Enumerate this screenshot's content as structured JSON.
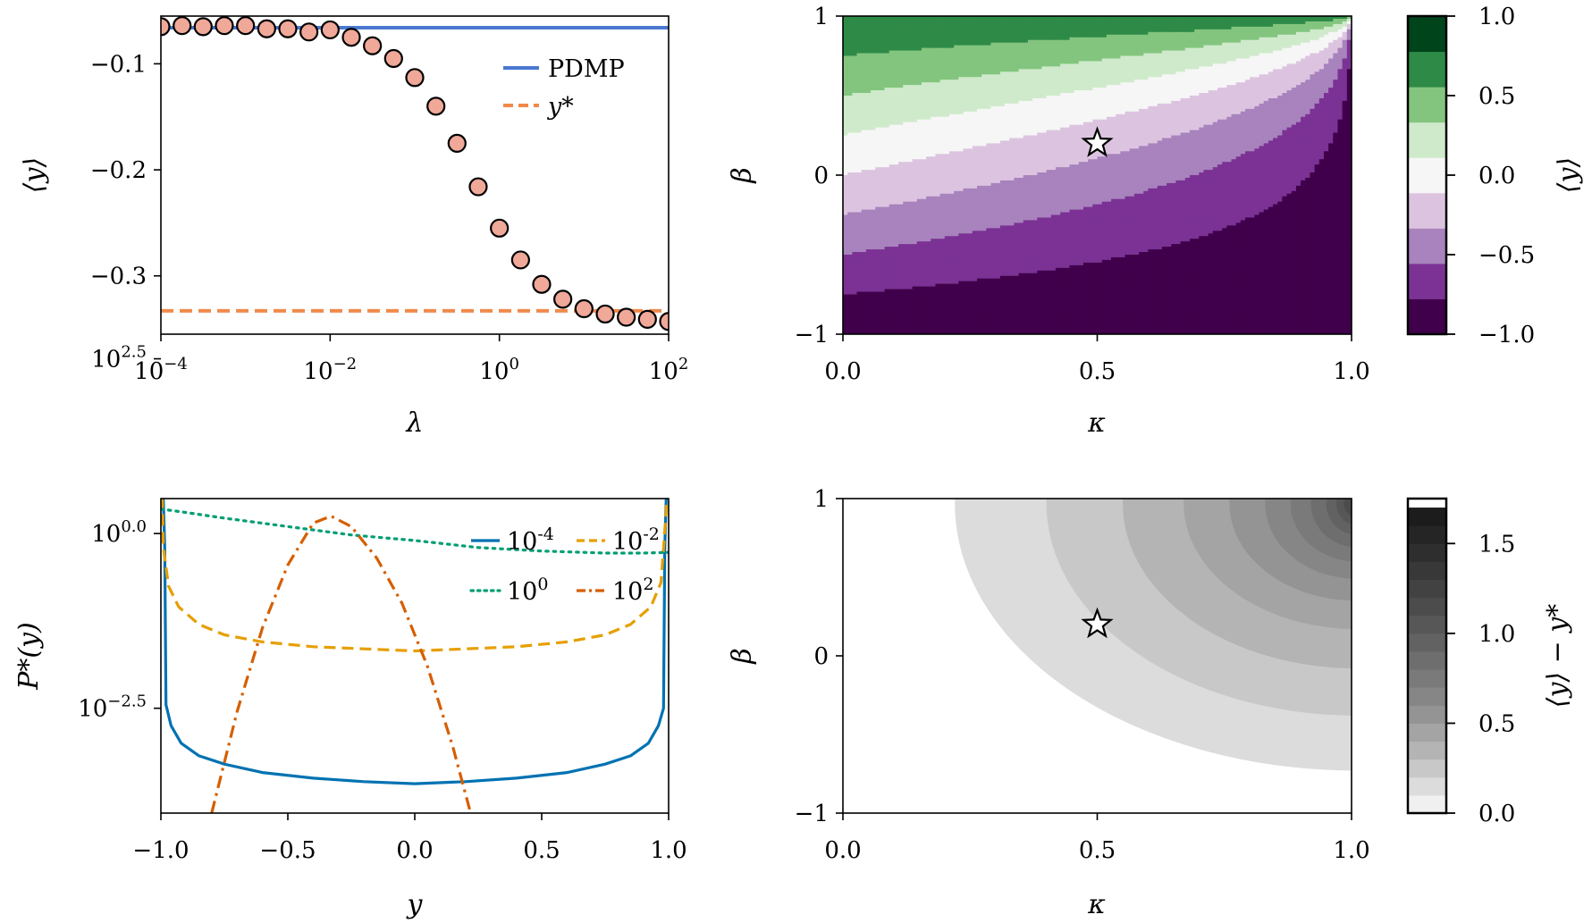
{
  "chart_data": [
    {
      "type": "scatter",
      "panel": "top-left",
      "xlabel": "λ",
      "ylabel": "⟨y⟩",
      "xscale": "log",
      "xlim": [
        0.0001,
        100
      ],
      "ylim": [
        -0.355,
        -0.055
      ],
      "xticks": [
        {
          "value": 0.0001,
          "base": "10",
          "exp": "−4"
        },
        {
          "value": 0.01,
          "base": "10",
          "exp": "−2"
        },
        {
          "value": 1,
          "base": "10",
          "exp": "0"
        },
        {
          "value": 100,
          "base": "10",
          "exp": "2"
        }
      ],
      "yticks": [
        {
          "value": -0.1,
          "label": "−0.1"
        },
        {
          "value": -0.2,
          "label": "−0.2"
        },
        {
          "value": -0.3,
          "label": "−0.3"
        }
      ],
      "legend": {
        "position": "top-right"
      },
      "reference_lines": [
        {
          "name": "PDMP",
          "y": -0.066,
          "style": "solid",
          "color": "#4a78d0"
        },
        {
          "name": "y*",
          "y": -0.333,
          "style": "dashed",
          "color": "#f08a4b"
        }
      ],
      "series": [
        {
          "marker_color": "#f0a898",
          "x": [
            0.0001,
            0.000178,
            0.000316,
            0.000562,
            0.001,
            0.00178,
            0.00316,
            0.00562,
            0.01,
            0.0178,
            0.0316,
            0.0562,
            0.1,
            0.178,
            0.316,
            0.562,
            1,
            1.78,
            3.16,
            5.62,
            10,
            17.8,
            31.6,
            56.2,
            100
          ],
          "y": [
            -0.065,
            -0.064,
            -0.065,
            -0.064,
            -0.064,
            -0.067,
            -0.067,
            -0.07,
            -0.068,
            -0.075,
            -0.083,
            -0.095,
            -0.113,
            -0.14,
            -0.175,
            -0.216,
            -0.255,
            -0.285,
            -0.308,
            -0.322,
            -0.331,
            -0.336,
            -0.339,
            -0.341,
            -0.343
          ]
        }
      ]
    },
    {
      "type": "heatmap",
      "panel": "top-right",
      "xlabel": "κ",
      "ylabel": "β",
      "xlim": [
        0,
        1
      ],
      "ylim": [
        -1,
        1
      ],
      "xticks": [
        "0.0",
        "0.5",
        "1.0"
      ],
      "yticks": [
        "−1",
        "0",
        "1"
      ],
      "marker": {
        "shape": "star",
        "x": 0.5,
        "y": 0.2
      },
      "colorbar": {
        "label": "⟨y⟩",
        "range": [
          -1.0,
          1.0
        ],
        "ticks": [
          "1.0",
          "0.5",
          "0.0",
          "−0.5",
          "−1.0"
        ],
        "levels": [
          -1.0,
          -0.75,
          -0.5,
          -0.25,
          0.0,
          0.25,
          0.5,
          0.75,
          1.0
        ],
        "colors": [
          "#40004b",
          "#7b3294",
          "#a883bd",
          "#dcc4e0",
          "#f6f6f6",
          "#cfeacb",
          "#83c57f",
          "#2e8a47",
          "#00441b"
        ]
      }
    },
    {
      "type": "line",
      "panel": "bottom-left",
      "xlabel": "y",
      "ylabel": "P*(y)",
      "yscale": "log",
      "xlim": [
        -1,
        1
      ],
      "ylim": [
        -4.0,
        0.5
      ],
      "xticks": [
        {
          "value": -1,
          "label": "−1.0"
        },
        {
          "value": -0.5,
          "label": "−0.5"
        },
        {
          "value": 0,
          "label": "0.0"
        },
        {
          "value": 0.5,
          "label": "0.5"
        },
        {
          "value": 1,
          "label": "1.0"
        }
      ],
      "yticks": [
        {
          "value": 2.5,
          "base": "10",
          "exp": "2.5"
        },
        {
          "value": 0,
          "base": "10",
          "exp": "0.0"
        },
        {
          "value": -2.5,
          "base": "10",
          "exp": "−2.5"
        }
      ],
      "legend": {
        "position": "top-right",
        "columns": 2
      },
      "series": [
        {
          "name": "10-4",
          "legend_base": "10",
          "legend_exp": "-4",
          "color": "#0072b2",
          "style": "solid",
          "x": [
            -1.0,
            -0.985,
            -0.98,
            -0.96,
            -0.92,
            -0.85,
            -0.75,
            -0.6,
            -0.4,
            -0.2,
            0.0,
            0.2,
            0.4,
            0.6,
            0.75,
            0.85,
            0.92,
            0.96,
            0.98,
            0.985,
            1.0
          ],
          "y": [
            1.7,
            -0.2,
            -2.45,
            -2.75,
            -3.0,
            -3.18,
            -3.3,
            -3.42,
            -3.5,
            -3.55,
            -3.58,
            -3.55,
            -3.5,
            -3.42,
            -3.3,
            -3.18,
            -3.0,
            -2.75,
            -2.5,
            -0.2,
            1.7
          ]
        },
        {
          "name": "10-2",
          "legend_base": "10",
          "legend_exp": "-2",
          "color": "#e69f00",
          "style": "dashed",
          "x": [
            -1.0,
            -0.99,
            -0.97,
            -0.93,
            -0.85,
            -0.75,
            -0.6,
            -0.4,
            -0.2,
            0.0,
            0.2,
            0.4,
            0.6,
            0.75,
            0.85,
            0.93,
            0.97,
            0.99,
            1.0
          ],
          "y": [
            1.3,
            -0.2,
            -0.75,
            -1.05,
            -1.3,
            -1.45,
            -1.55,
            -1.62,
            -1.65,
            -1.68,
            -1.65,
            -1.62,
            -1.55,
            -1.45,
            -1.3,
            -1.05,
            -0.7,
            0.3,
            1.3
          ],
          "dash": "14 8"
        },
        {
          "name": "100",
          "legend_base": "10",
          "legend_exp": "0",
          "color": "#009e73",
          "style": "dotted",
          "x": [
            -1.0,
            -0.9,
            -0.75,
            -0.5,
            -0.25,
            0.0,
            0.25,
            0.5,
            0.75,
            0.9,
            1.0
          ],
          "y": [
            0.35,
            0.3,
            0.22,
            0.1,
            -0.02,
            -0.1,
            -0.2,
            -0.25,
            -0.28,
            -0.28,
            -0.27
          ]
        },
        {
          "name": "102",
          "legend_base": "10",
          "legend_exp": "2",
          "color": "#d55e00",
          "style": "dashdot",
          "x": [
            -0.8,
            -0.7,
            -0.6,
            -0.5,
            -0.4,
            -0.33,
            -0.25,
            -0.15,
            -0.05,
            0.05,
            0.15,
            0.22
          ],
          "y": [
            -4.0,
            -2.55,
            -1.35,
            -0.45,
            0.15,
            0.25,
            0.1,
            -0.35,
            -1.0,
            -1.9,
            -3.05,
            -4.0
          ]
        }
      ]
    },
    {
      "type": "heatmap",
      "panel": "bottom-right",
      "xlabel": "κ",
      "ylabel": "β",
      "xlim": [
        0,
        1
      ],
      "ylim": [
        -1,
        1
      ],
      "xticks": [
        "0.0",
        "0.5",
        "1.0"
      ],
      "yticks": [
        "−1",
        "0",
        "1"
      ],
      "marker": {
        "shape": "star",
        "x": 0.5,
        "y": 0.2
      },
      "colorbar": {
        "label": "⟨y⟩ − y*",
        "range": [
          0.0,
          1.75
        ],
        "ticks": [
          "1.5",
          "1.0",
          "0.5",
          "0.0"
        ],
        "levels": [
          0.0,
          0.1,
          0.2,
          0.3,
          0.4,
          0.5,
          0.6,
          0.7,
          0.8,
          0.9,
          1.0,
          1.1,
          1.2,
          1.3,
          1.4,
          1.5,
          1.6,
          1.7
        ],
        "colors": [
          "#f0f0f0",
          "#dcdcdc",
          "#c8c8c8",
          "#b4b4b4",
          "#a4a4a4",
          "#949494",
          "#868686",
          "#7a7a7a",
          "#6e6e6e",
          "#626262",
          "#575757",
          "#4c4c4c",
          "#424242",
          "#383838",
          "#2e2e2e",
          "#252525",
          "#1c1c1c"
        ]
      }
    }
  ]
}
